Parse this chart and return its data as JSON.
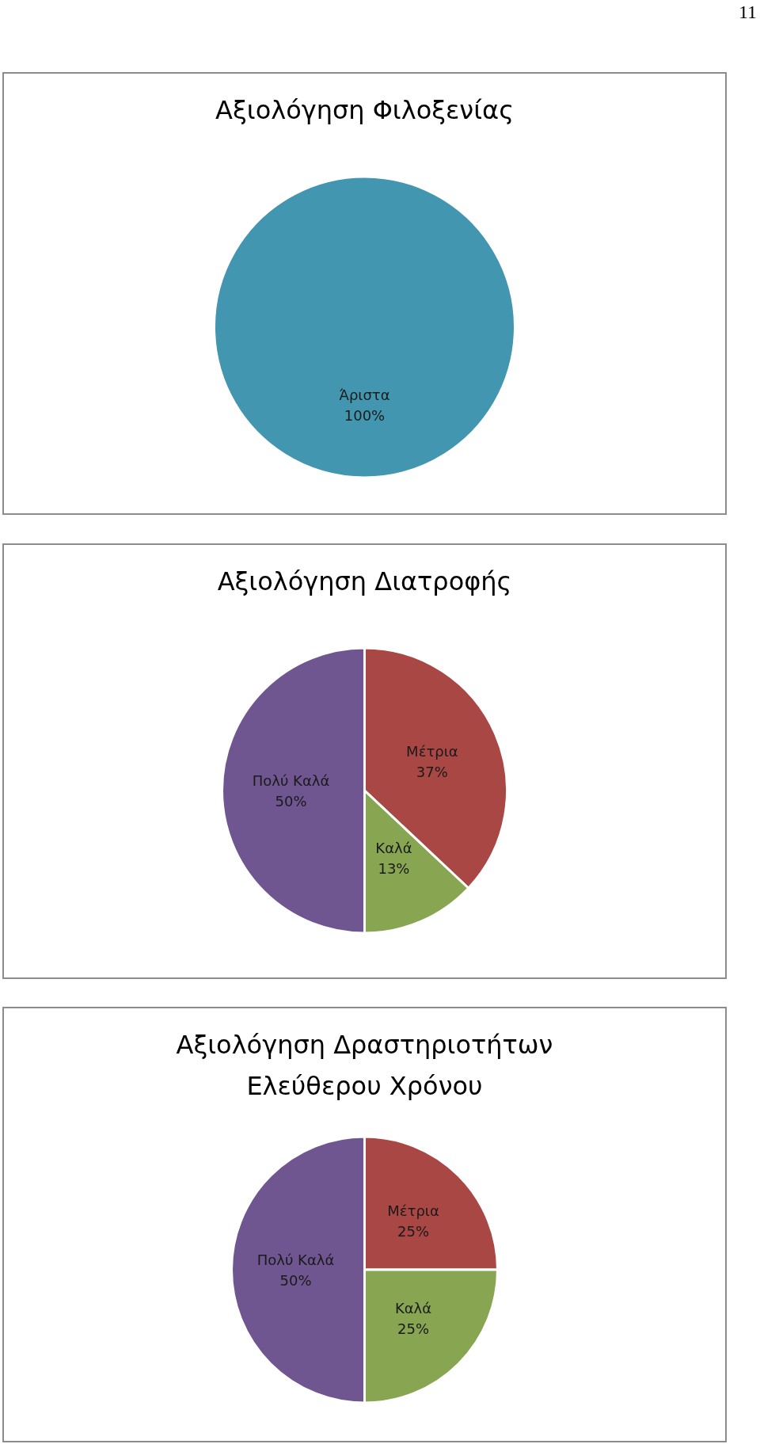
{
  "chart_data": [
    {
      "type": "pie",
      "title": "Αξιολόγηση Φιλοξενίας",
      "categories": [
        "Άριστα"
      ],
      "values": [
        100
      ],
      "value_labels": [
        "100%"
      ],
      "colors": [
        "#4396af"
      ],
      "annotations": [
        "11"
      ]
    },
    {
      "type": "pie",
      "title": "Αξιολόγηση Διατροφής",
      "categories": [
        "Μέτρια",
        "Καλά",
        "Πολύ Καλά"
      ],
      "values": [
        37,
        13,
        50
      ],
      "value_labels": [
        "37%",
        "13%",
        "50%"
      ],
      "colors": [
        "#a94744",
        "#88a551",
        "#6f5690"
      ]
    },
    {
      "type": "pie",
      "title": "Αξιολόγηση Δραστηριοτήτων Ελεύθερου Χρόνου",
      "categories": [
        "Μέτρια",
        "Καλά",
        "Πολύ Καλά"
      ],
      "values": [
        25,
        25,
        50
      ],
      "value_labels": [
        "25%",
        "25%",
        "50%"
      ],
      "colors": [
        "#a94744",
        "#88a551",
        "#6f5690"
      ]
    }
  ]
}
